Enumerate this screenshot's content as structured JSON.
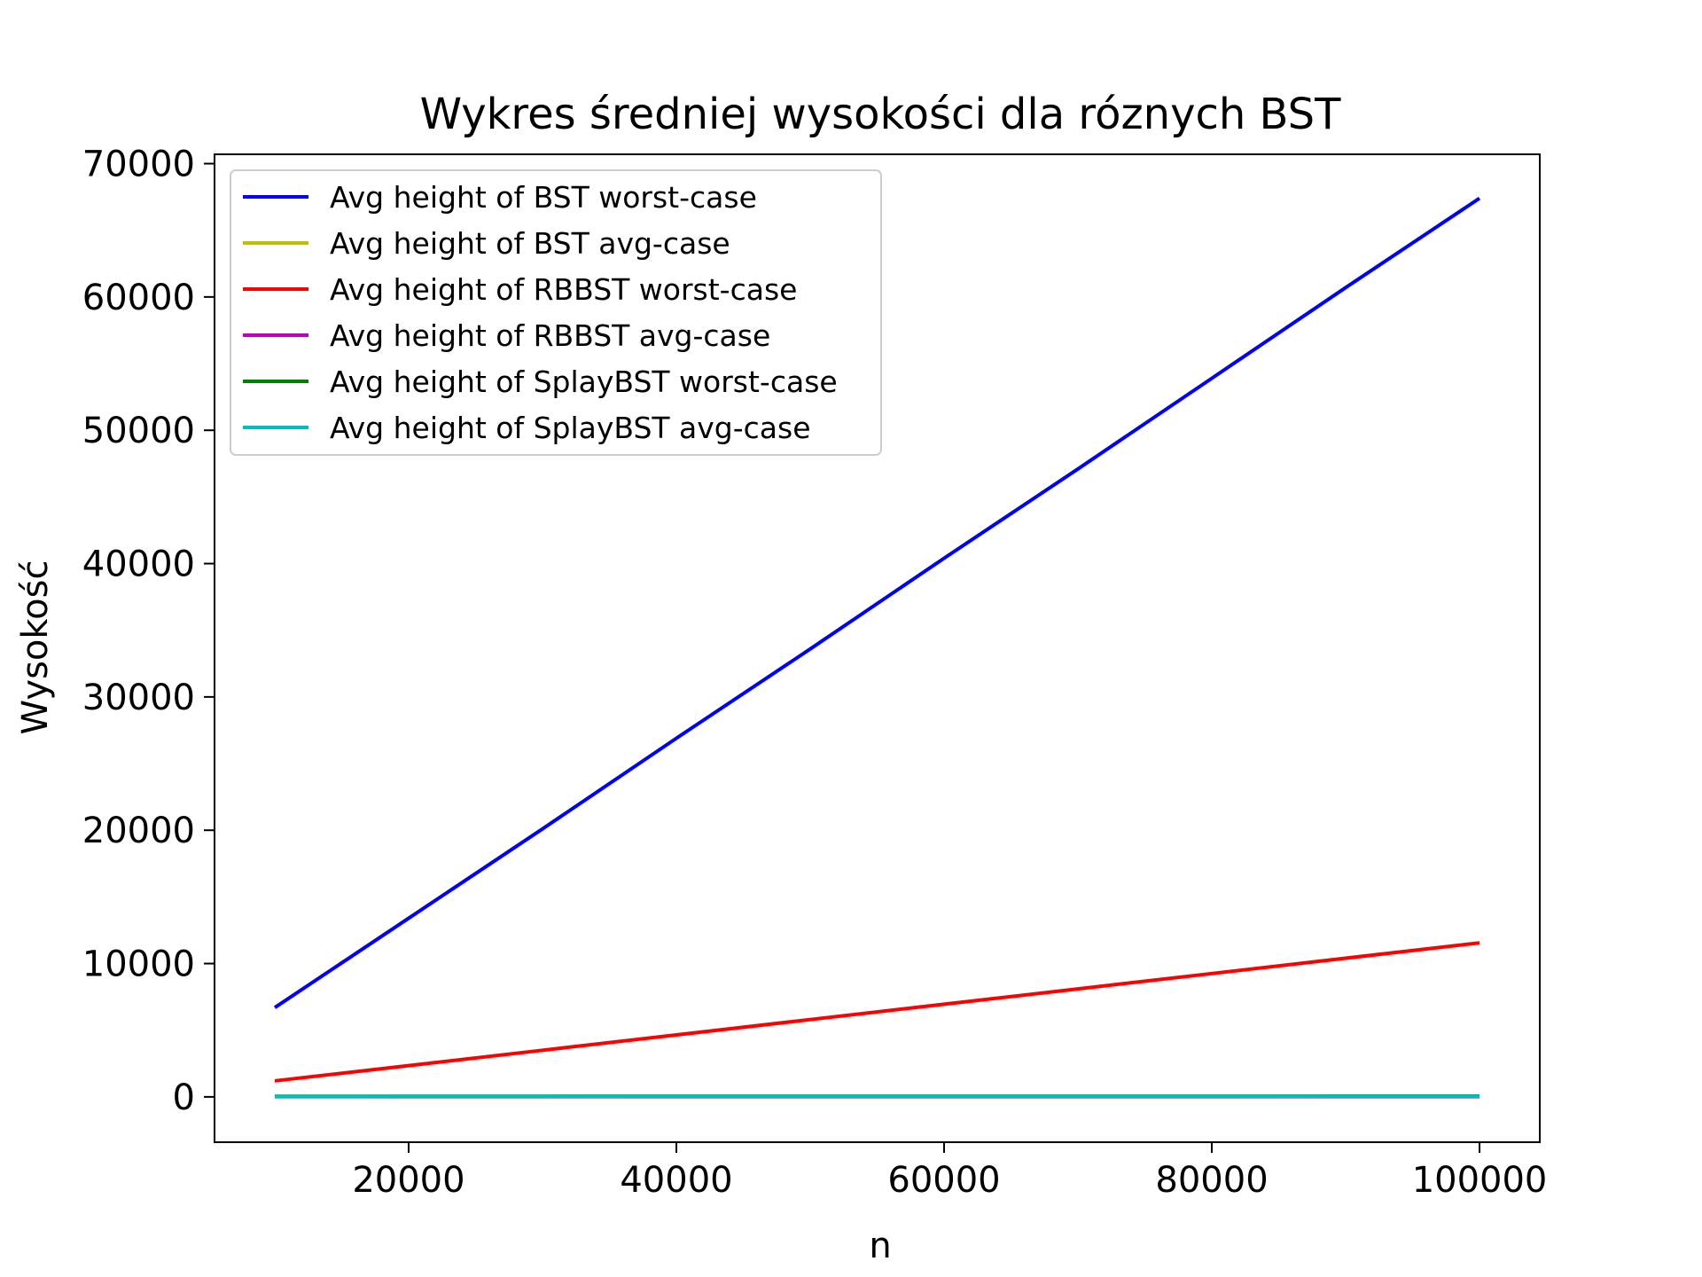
{
  "chart_data": {
    "type": "line",
    "title": "Wykres średniej wysokości dla róznych BST",
    "xlabel": "n",
    "ylabel": "Wysokość",
    "xlim": [
      5500,
      104500
    ],
    "ylim": [
      -3400,
      70700
    ],
    "xticks": [
      20000,
      40000,
      60000,
      80000,
      100000
    ],
    "yticks": [
      0,
      10000,
      20000,
      30000,
      40000,
      50000,
      60000,
      70000
    ],
    "x": [
      10000,
      20000,
      30000,
      40000,
      50000,
      60000,
      70000,
      80000,
      90000,
      100000
    ],
    "grid": false,
    "legend_position": "top-left",
    "series": [
      {
        "name": "Avg height of BST worst-case",
        "color": "#0000ff",
        "values": [
          6700,
          13400,
          20100,
          26900,
          33600,
          40400,
          47100,
          53900,
          60700,
          67400
        ]
      },
      {
        "name": "Avg height of BST avg-case",
        "color": "#bfbf00",
        "values": [
          30,
          33,
          35,
          36,
          37,
          38,
          38,
          39,
          39,
          40
        ]
      },
      {
        "name": "Avg height of RBBST worst-case",
        "color": "#ff0000",
        "values": [
          1200,
          2350,
          3500,
          4650,
          5800,
          6950,
          8100,
          9250,
          10400,
          11550
        ]
      },
      {
        "name": "Avg height of RBBST avg-case",
        "color": "#bf00bf",
        "values": [
          16,
          18,
          19,
          19,
          20,
          20,
          21,
          21,
          21,
          22
        ]
      },
      {
        "name": "Avg height of SplayBST worst-case",
        "color": "#008000",
        "values": [
          40,
          45,
          48,
          50,
          52,
          53,
          54,
          55,
          56,
          57
        ]
      },
      {
        "name": "Avg height of SplayBST avg-case",
        "color": "#00bfbf",
        "values": [
          35,
          38,
          40,
          42,
          43,
          44,
          45,
          46,
          46,
          47
        ]
      }
    ]
  }
}
